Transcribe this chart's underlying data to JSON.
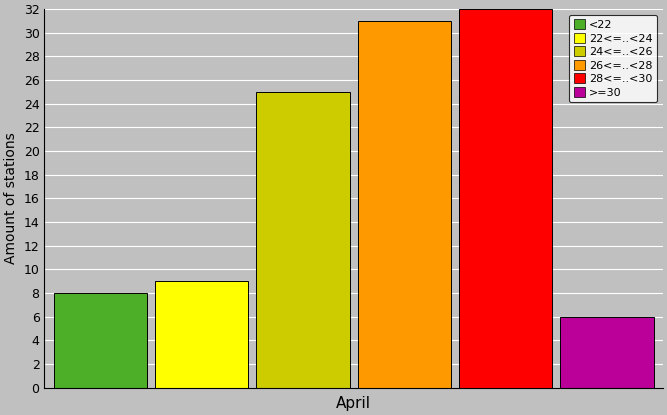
{
  "bars": [
    {
      "label": "<22",
      "value": 8,
      "color": "#4caf27"
    },
    {
      "label": "22<=..<24",
      "value": 9,
      "color": "#ffff00"
    },
    {
      "label": "24<=..<26",
      "value": 25,
      "color": "#cccc00"
    },
    {
      "label": "26<=..<28",
      "value": 31,
      "color": "#ff9900"
    },
    {
      "label": "28<=..<30",
      "value": 32,
      "color": "#ff0000"
    },
    {
      "label": ">=30",
      "value": 6,
      "color": "#bb0099"
    }
  ],
  "ylabel": "Amount of stations",
  "xlabel": "April",
  "ylim": [
    0,
    32
  ],
  "yticks": [
    0,
    2,
    4,
    6,
    8,
    10,
    12,
    14,
    16,
    18,
    20,
    22,
    24,
    26,
    28,
    30,
    32
  ],
  "background_color": "#c0c0c0",
  "plot_bg_color": "#c0c0c0",
  "grid_color": "#ffffff"
}
